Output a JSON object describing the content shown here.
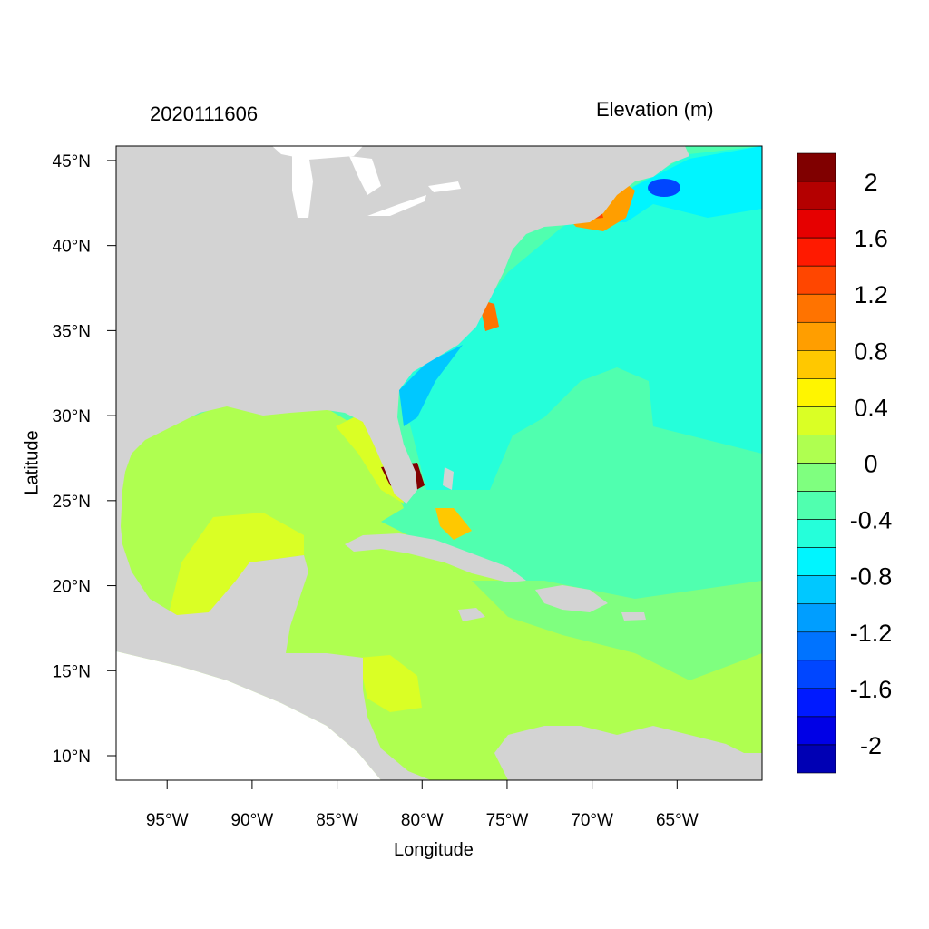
{
  "title_left": "2020111606",
  "title_right": "Elevation (m)",
  "x_axis": {
    "label": "Longitude",
    "range": [
      -98.0,
      -60.0
    ],
    "ticks": [
      -95,
      -90,
      -85,
      -80,
      -75,
      -70,
      -65
    ],
    "tick_labels": [
      "95°W",
      "90°W",
      "85°W",
      "80°W",
      "75°W",
      "70°W",
      "65°W"
    ]
  },
  "y_axis": {
    "label": "Latitude",
    "range": [
      8.56,
      45.85
    ],
    "ticks": [
      10,
      15,
      20,
      25,
      30,
      35,
      40,
      45
    ],
    "tick_labels": [
      "10°N",
      "15°N",
      "20°N",
      "25°N",
      "30°N",
      "35°N",
      "40°N",
      "45°N"
    ]
  },
  "colorbar": {
    "boundaries": [
      2.2,
      2.0,
      1.8,
      1.6,
      1.4,
      1.2,
      1.0,
      0.8,
      0.6,
      0.4,
      0.2,
      0.0,
      -0.2,
      -0.4,
      -0.6,
      -0.8,
      -1.0,
      -1.2,
      -1.4,
      -1.6,
      -1.8,
      -2.0,
      -2.2
    ],
    "colors": [
      "#800000",
      "#B40000",
      "#E60000",
      "#FF1A00",
      "#FF4600",
      "#FF7300",
      "#FF9E00",
      "#FFC800",
      "#FFF500",
      "#DAFF25",
      "#AFFF50",
      "#7FFF7F",
      "#50FFAF",
      "#25FFDA",
      "#00F5FF",
      "#00C8FF",
      "#009EFF",
      "#0073FF",
      "#0046FF",
      "#001AFF",
      "#0000E6",
      "#0000B4"
    ],
    "labels": [
      "2",
      "1.6",
      "1.2",
      "0.8",
      "0.4",
      "0",
      "-0.4",
      "-0.8",
      "-1.2",
      "-1.6",
      "-2"
    ],
    "label_values": [
      2,
      1.6,
      1.2,
      0.8,
      0.4,
      0,
      -0.4,
      -0.8,
      -1.2,
      -1.6,
      -2
    ]
  },
  "colors": {
    "land": "#D3D3D3",
    "no_data": "#FFFFFF"
  }
}
